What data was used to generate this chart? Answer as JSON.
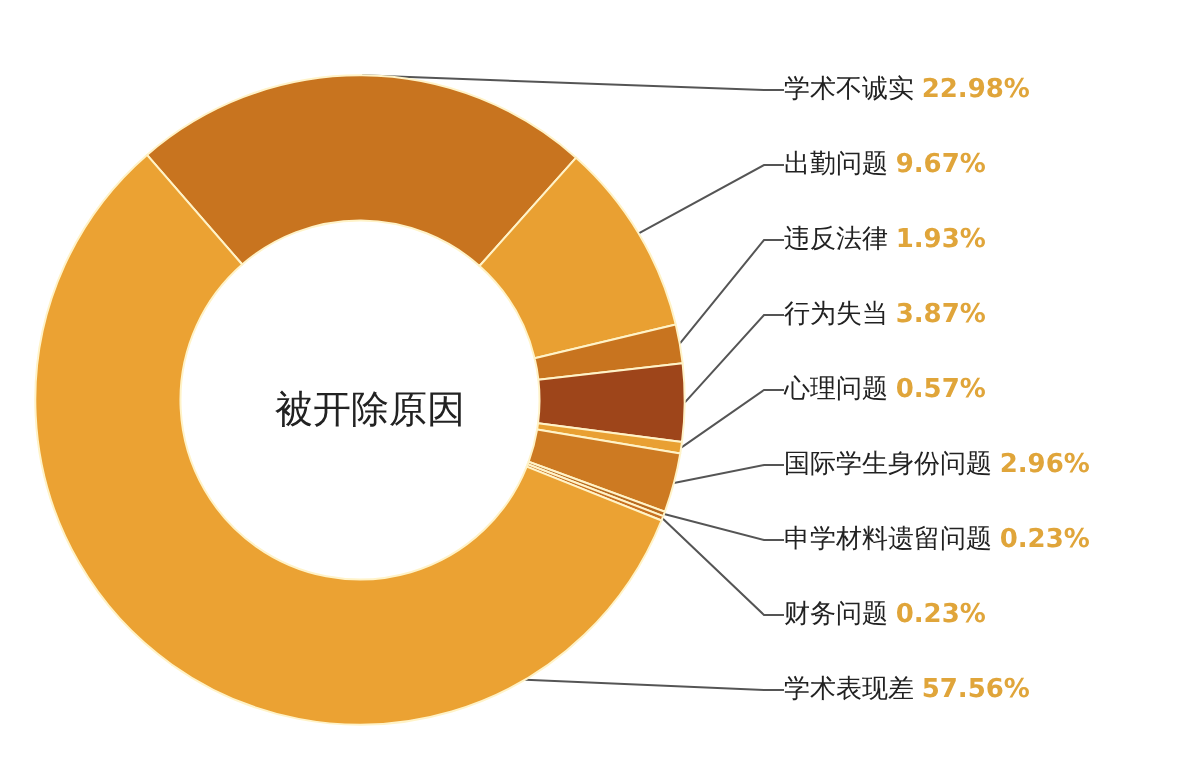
{
  "chart_data": {
    "type": "donut",
    "title": "被开除原因",
    "categories": [
      "学术不诚实",
      "出勤问题",
      "违反法律",
      "行为失当",
      "心理问题",
      "国际学生身份问题",
      "申学材料遗留问题",
      "财务问题",
      "学术表现差"
    ],
    "values": [
      22.98,
      9.67,
      1.93,
      3.87,
      0.57,
      2.96,
      0.23,
      0.23,
      57.56
    ],
    "value_labels": [
      "22.98%",
      "9.67%",
      "1.93%",
      "3.87%",
      "0.57%",
      "2.96%",
      "0.23%",
      "0.23%",
      "57.56%"
    ],
    "colors": [
      "#c8741f",
      "#e9a032",
      "#c8741f",
      "#9e451a",
      "#e9a032",
      "#cd7a22",
      "#b86a1e",
      "#c87020",
      "#eba233"
    ],
    "legend": false
  }
}
